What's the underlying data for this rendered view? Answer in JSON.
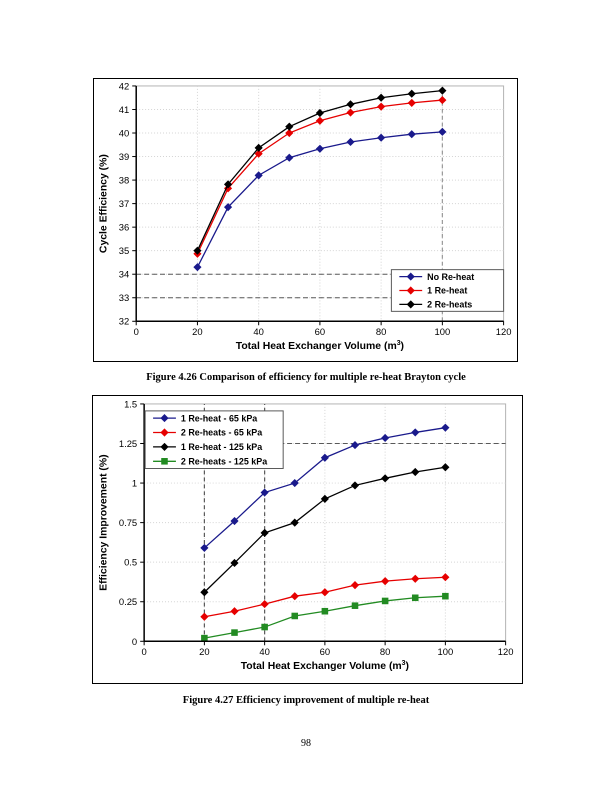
{
  "page": {
    "number": "98"
  },
  "figures": [
    {
      "caption": "Figure 4.26 Comparison of efficiency for multiple re-heat Brayton cycle"
    },
    {
      "caption": "Figure 4.27 Efficiency improvement of multiple re-heat"
    }
  ],
  "chart_data": [
    {
      "type": "line",
      "title": "",
      "xlabel": "Total Heat Exchanger Volume (m3)",
      "xlabel_parts": [
        {
          "text": "Total Heat Exchanger Volume (m"
        },
        {
          "text": "3",
          "sup": true
        },
        {
          "text": ")"
        }
      ],
      "ylabel": "Cycle Efficiency (%)",
      "xlim": [
        0,
        120
      ],
      "ylim": [
        32,
        42
      ],
      "xticks": [
        0,
        20,
        40,
        60,
        80,
        100,
        120
      ],
      "xtick_labels": [
        "0",
        "20",
        "40",
        "60",
        "80",
        "100",
        "120"
      ],
      "yticks": [
        32,
        33,
        34,
        35,
        36,
        37,
        38,
        39,
        40,
        41,
        42
      ],
      "ytick_labels": [
        "32",
        "33",
        "34",
        "35",
        "36",
        "37",
        "38",
        "39",
        "40",
        "41",
        "42"
      ],
      "grid": "dotted",
      "grid_color": "#d4d4d4",
      "legend_position": "bottom-right",
      "x": [
        20,
        30,
        40,
        50,
        60,
        70,
        80,
        90,
        100
      ],
      "series": [
        {
          "name": "No Re-heat",
          "color": "#1a1a8c",
          "marker": "diamond",
          "values": [
            34.3,
            36.85,
            38.2,
            38.95,
            39.33,
            39.62,
            39.8,
            39.95,
            40.05
          ]
        },
        {
          "name": "1 Re-heat",
          "color": "#e60000",
          "marker": "diamond",
          "values": [
            34.87,
            37.65,
            39.12,
            40.0,
            40.52,
            40.87,
            41.12,
            41.28,
            41.4
          ]
        },
        {
          "name": "2 Re-heats",
          "color": "#000000",
          "marker": "diamond",
          "values": [
            35.0,
            37.82,
            39.37,
            40.27,
            40.85,
            41.22,
            41.5,
            41.67,
            41.8
          ]
        }
      ],
      "ref_lines": {
        "horizontal": [
          {
            "y": 33,
            "color": "#595959"
          },
          {
            "y": 34,
            "color": "#595959"
          }
        ],
        "vertical": [
          {
            "x": 100,
            "y_from": 32,
            "y_to": 41.85,
            "color": "#999999"
          }
        ]
      }
    },
    {
      "type": "line",
      "title": "",
      "xlabel": "Total Heat Exchanger Volume (m3)",
      "xlabel_parts": [
        {
          "text": "Total Heat Exchanger Volume (m"
        },
        {
          "text": "3",
          "sup": true
        },
        {
          "text": ")"
        }
      ],
      "ylabel": "Efficiency Improvement (%)",
      "xlim": [
        0,
        120
      ],
      "ylim": [
        0,
        1.5
      ],
      "xticks": [
        0,
        20,
        40,
        60,
        80,
        100,
        120
      ],
      "xtick_labels": [
        "0",
        "20",
        "40",
        "60",
        "80",
        "100",
        "120"
      ],
      "yticks": [
        0,
        0.25,
        0.5,
        0.75,
        1,
        1.25,
        1.5
      ],
      "ytick_labels": [
        "0",
        "0.25",
        "0.5",
        "0.75",
        "1",
        "1.25",
        "1.5"
      ],
      "grid": "dotted",
      "grid_color": "#d4d4d4",
      "legend_position": "top-left",
      "x": [
        20,
        30,
        40,
        50,
        60,
        70,
        80,
        90,
        100
      ],
      "series": [
        {
          "name": "1 Re-heat - 65 kPa",
          "color": "#1a1a8c",
          "marker": "diamond",
          "values": [
            0.59,
            0.76,
            0.94,
            1.0,
            1.16,
            1.24,
            1.285,
            1.32,
            1.35
          ]
        },
        {
          "name": "2 Re-heats - 65 kPa",
          "color": "#e60000",
          "marker": "diamond",
          "values": [
            0.155,
            0.19,
            0.235,
            0.285,
            0.31,
            0.355,
            0.38,
            0.395,
            0.405
          ]
        },
        {
          "name": "1 Re-heat - 125 kPa",
          "color": "#000000",
          "marker": "diamond",
          "values": [
            0.31,
            0.495,
            0.685,
            0.75,
            0.9,
            0.985,
            1.03,
            1.07,
            1.1
          ]
        },
        {
          "name": "2 Re-heats - 125 kPa",
          "color": "#228B22",
          "marker": "square",
          "values": [
            0.02,
            0.055,
            0.09,
            0.16,
            0.19,
            0.225,
            0.255,
            0.275,
            0.285
          ]
        }
      ],
      "ref_lines": {
        "horizontal": [
          {
            "y": 1.25,
            "color": "#595959"
          }
        ],
        "vertical": [
          {
            "x": 20,
            "y_from": 0,
            "y_to": 1.5,
            "color": "#595959"
          },
          {
            "x": 40,
            "y_from": 0,
            "y_to": 1.5,
            "color": "#595959"
          }
        ]
      }
    }
  ]
}
